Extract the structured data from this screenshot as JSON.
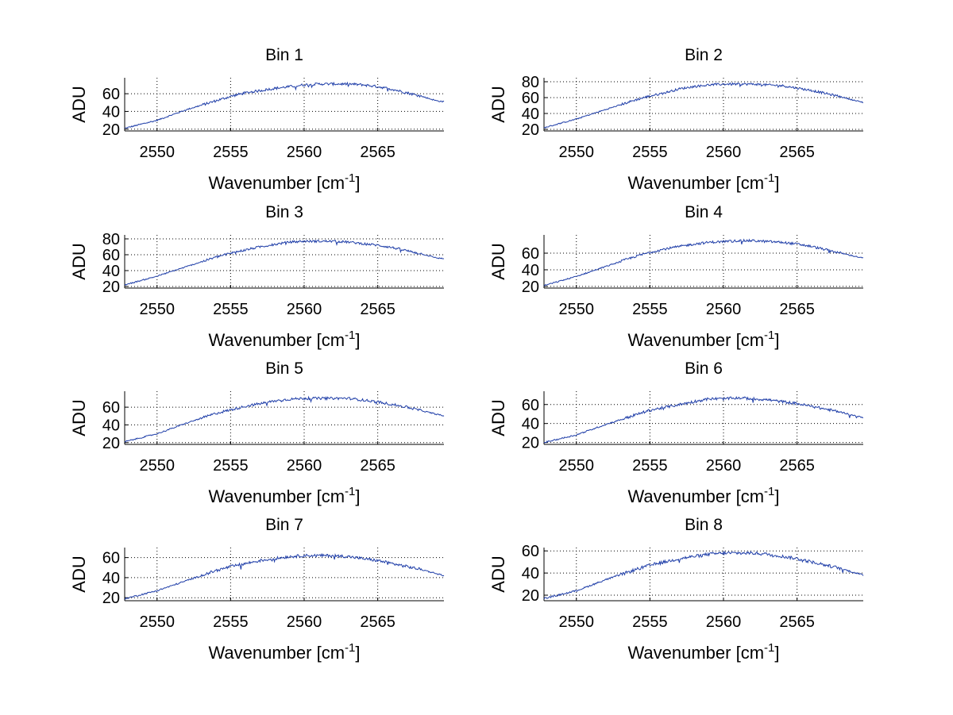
{
  "figure": {
    "background": "#ffffff",
    "line_color": "#1f3ea8"
  },
  "chart_data": [
    {
      "type": "line",
      "title": "Bin 1",
      "xlabel": "Wavenumber [cm",
      "xlabel_superscript": "-1",
      "xlabel_suffix": "]",
      "ylabel": "ADU",
      "xlim": [
        2547.8,
        2569.5
      ],
      "ylim": [
        18,
        78
      ],
      "xticks": [
        2550,
        2555,
        2560,
        2565
      ],
      "yticks": [
        20,
        40,
        60
      ],
      "grid": true,
      "series": [
        {
          "name": "Bin 1",
          "x": [
            2547.8,
            2550,
            2552,
            2554,
            2555,
            2556,
            2558,
            2559,
            2560,
            2561,
            2562,
            2563,
            2564,
            2565,
            2566,
            2567,
            2568,
            2569,
            2569.5
          ],
          "y": [
            21,
            30,
            42,
            52,
            57,
            61,
            66,
            68,
            70,
            71,
            71,
            71,
            70,
            68,
            65,
            61,
            57,
            52,
            51
          ]
        }
      ]
    },
    {
      "type": "line",
      "title": "Bin 2",
      "xlabel": "Wavenumber [cm",
      "xlabel_superscript": "-1",
      "xlabel_suffix": "]",
      "ylabel": "ADU",
      "xlim": [
        2547.8,
        2569.5
      ],
      "ylim": [
        18,
        85
      ],
      "xticks": [
        2550,
        2555,
        2560,
        2565
      ],
      "yticks": [
        20,
        40,
        60,
        80
      ],
      "grid": true,
      "series": [
        {
          "name": "Bin 2",
          "x": [
            2547.8,
            2550,
            2552,
            2554,
            2555,
            2556,
            2557,
            2558,
            2559,
            2560,
            2561,
            2562,
            2563,
            2564,
            2565,
            2566,
            2567,
            2568,
            2569,
            2569.5
          ],
          "y": [
            22,
            33,
            45,
            57,
            62,
            66,
            71,
            74,
            76,
            77,
            77,
            77,
            76,
            75,
            72,
            69,
            65,
            61,
            56,
            54
          ]
        }
      ]
    },
    {
      "type": "line",
      "title": "Bin 3",
      "xlabel": "Wavenumber [cm",
      "xlabel_superscript": "-1",
      "xlabel_suffix": "]",
      "ylabel": "ADU",
      "xlim": [
        2547.8,
        2569.5
      ],
      "ylim": [
        18,
        85
      ],
      "xticks": [
        2550,
        2555,
        2560,
        2565
      ],
      "yticks": [
        20,
        40,
        60,
        80
      ],
      "grid": true,
      "series": [
        {
          "name": "Bin 3",
          "x": [
            2547.8,
            2550,
            2552,
            2554,
            2555,
            2556,
            2557,
            2558,
            2559,
            2560,
            2561,
            2562,
            2563,
            2564,
            2565,
            2566,
            2567,
            2568,
            2569,
            2569.5
          ],
          "y": [
            22,
            33,
            45,
            57,
            62,
            66,
            70,
            73,
            76,
            77,
            77,
            77,
            76,
            74,
            72,
            69,
            65,
            61,
            56,
            55
          ]
        }
      ]
    },
    {
      "type": "line",
      "title": "Bin 4",
      "xlabel": "Wavenumber [cm",
      "xlabel_superscript": "-1",
      "xlabel_suffix": "]",
      "ylabel": "ADU",
      "xlim": [
        2547.8,
        2569.5
      ],
      "ylim": [
        18,
        82
      ],
      "xticks": [
        2550,
        2555,
        2560,
        2565
      ],
      "yticks": [
        20,
        40,
        60
      ],
      "grid": true,
      "series": [
        {
          "name": "Bin 4",
          "x": [
            2547.8,
            2550,
            2552,
            2554,
            2555,
            2556,
            2557,
            2558,
            2559,
            2560,
            2561,
            2562,
            2563,
            2564,
            2565,
            2566,
            2567,
            2568,
            2569,
            2569.5
          ],
          "y": [
            21,
            32,
            44,
            56,
            61,
            65,
            68,
            71,
            73,
            74,
            75,
            75,
            74,
            73,
            71,
            68,
            64,
            60,
            56,
            54
          ]
        }
      ]
    },
    {
      "type": "line",
      "title": "Bin 5",
      "xlabel": "Wavenumber [cm",
      "xlabel_superscript": "-1",
      "xlabel_suffix": "]",
      "ylabel": "ADU",
      "xlim": [
        2547.8,
        2569.5
      ],
      "ylim": [
        18,
        78
      ],
      "xticks": [
        2550,
        2555,
        2560,
        2565
      ],
      "yticks": [
        20,
        40,
        60
      ],
      "grid": true,
      "series": [
        {
          "name": "Bin 5",
          "x": [
            2547.8,
            2550,
            2552,
            2554,
            2555,
            2556,
            2557,
            2558,
            2559,
            2560,
            2561,
            2562,
            2563,
            2564,
            2565,
            2566,
            2567,
            2568,
            2569,
            2569.5
          ],
          "y": [
            21,
            30,
            42,
            53,
            57,
            61,
            64,
            67,
            69,
            70,
            70,
            70,
            70,
            68,
            66,
            63,
            60,
            56,
            52,
            50
          ]
        }
      ]
    },
    {
      "type": "line",
      "title": "Bin 6",
      "xlabel": "Wavenumber [cm",
      "xlabel_superscript": "-1",
      "xlabel_suffix": "]",
      "ylabel": "ADU",
      "xlim": [
        2547.8,
        2569.5
      ],
      "ylim": [
        18,
        74
      ],
      "xticks": [
        2550,
        2555,
        2560,
        2565
      ],
      "yticks": [
        20,
        40,
        60
      ],
      "grid": true,
      "series": [
        {
          "name": "Bin 6",
          "x": [
            2547.8,
            2550,
            2552,
            2554,
            2555,
            2556,
            2557,
            2558,
            2559,
            2560,
            2561,
            2562,
            2563,
            2564,
            2565,
            2566,
            2567,
            2568,
            2569,
            2569.5
          ],
          "y": [
            20,
            28,
            39,
            49,
            54,
            57,
            60,
            63,
            66,
            66,
            67,
            66,
            65,
            63,
            61,
            58,
            55,
            52,
            48,
            46
          ]
        }
      ]
    },
    {
      "type": "line",
      "title": "Bin 7",
      "xlabel": "Wavenumber [cm",
      "xlabel_superscript": "-1",
      "xlabel_suffix": "]",
      "ylabel": "ADU",
      "xlim": [
        2547.8,
        2569.5
      ],
      "ylim": [
        17,
        70
      ],
      "xticks": [
        2550,
        2555,
        2560,
        2565
      ],
      "yticks": [
        20,
        40,
        60
      ],
      "grid": true,
      "series": [
        {
          "name": "Bin 7",
          "x": [
            2547.8,
            2550,
            2552,
            2554,
            2555,
            2556,
            2557,
            2558,
            2559,
            2560,
            2561,
            2562,
            2563,
            2564,
            2565,
            2566,
            2567,
            2568,
            2569,
            2569.5
          ],
          "y": [
            19,
            27,
            37,
            47,
            51,
            54,
            57,
            59,
            61,
            62,
            62,
            62,
            61,
            59,
            57,
            54,
            51,
            48,
            44,
            42
          ]
        }
      ]
    },
    {
      "type": "line",
      "title": "Bin 8",
      "xlabel": "Wavenumber [cm",
      "xlabel_superscript": "-1",
      "xlabel_suffix": "]",
      "ylabel": "ADU",
      "xlim": [
        2547.8,
        2569.5
      ],
      "ylim": [
        15,
        63
      ],
      "xticks": [
        2550,
        2555,
        2560,
        2565
      ],
      "yticks": [
        20,
        40,
        60
      ],
      "grid": true,
      "series": [
        {
          "name": "Bin 8",
          "x": [
            2547.8,
            2550,
            2552,
            2554,
            2555,
            2556,
            2557,
            2558,
            2559,
            2560,
            2561,
            2562,
            2563,
            2564,
            2565,
            2566,
            2567,
            2568,
            2569,
            2569.5
          ],
          "y": [
            17,
            24,
            34,
            43,
            47,
            50,
            53,
            55,
            57,
            58,
            58,
            58,
            57,
            55,
            53,
            50,
            47,
            44,
            40,
            38
          ]
        }
      ]
    }
  ]
}
